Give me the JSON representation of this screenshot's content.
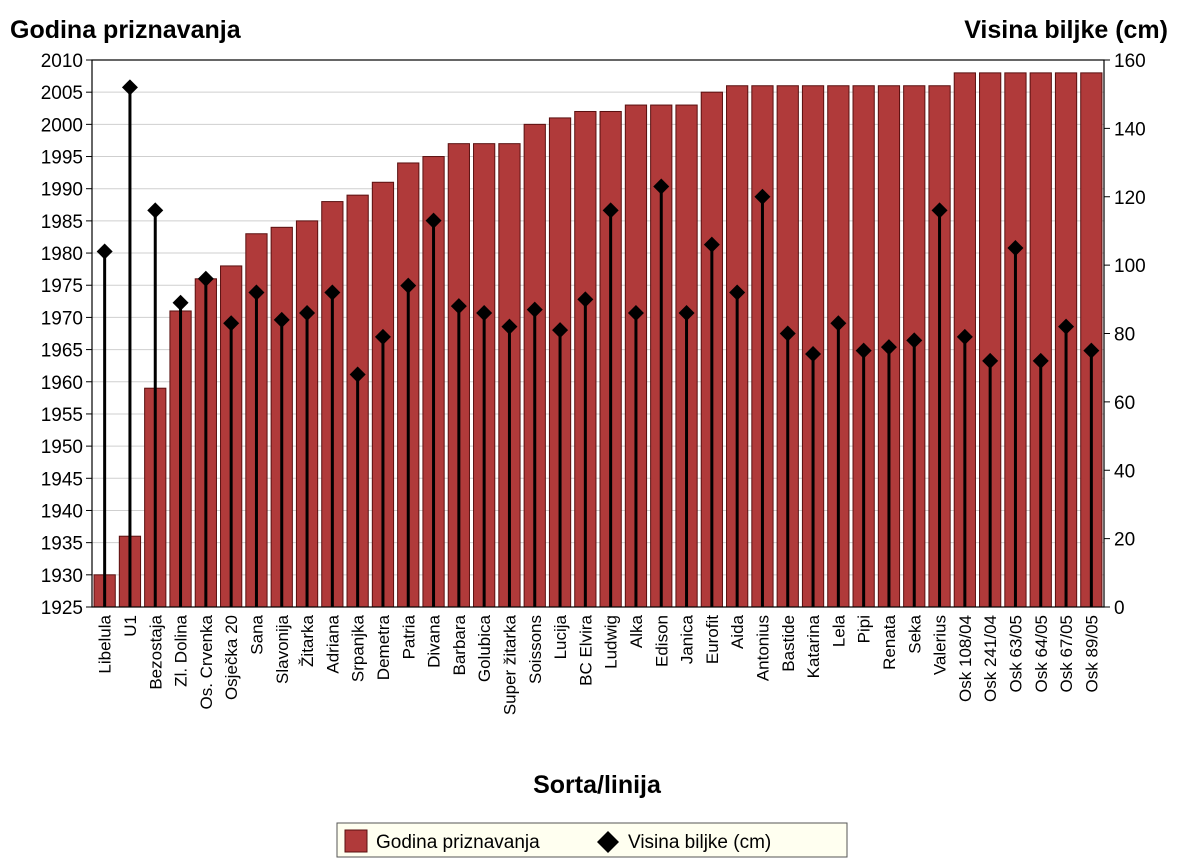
{
  "chart_data": {
    "type": "bar",
    "left_axis_title": "Godina priznavanja",
    "right_axis_title": "Visina biljke (cm)",
    "xlabel": "Sorta/linija",
    "categories": [
      "Libelula",
      "U1",
      "Bezostaja",
      "Zl. Dolina",
      "Os. Crvenka",
      "Osječka 20",
      "Sana",
      "Slavonija",
      "Žitarka",
      "Adriana",
      "Srpanjka",
      "Demetra",
      "Patria",
      "Divana",
      "Barbara",
      "Golubica",
      "Super žitarka",
      "Soissons",
      "Lucija",
      "BC Elvira",
      "Ludwig",
      "Alka",
      "Edison",
      "Janica",
      "Eurofit",
      "Aida",
      "Antonius",
      "Bastide",
      "Katarina",
      "Lela",
      "Pipi",
      "Renata",
      "Seka",
      "Valerius",
      "Osk 108/04",
      "Osk 241/04",
      "Osk 63/05",
      "Osk 64/05",
      "Osk 67/05",
      "Osk 89/05"
    ],
    "series": [
      {
        "name": "Godina priznavanja",
        "type": "bar",
        "axis": "left",
        "values": [
          1930,
          1936,
          1959,
          1971,
          1976,
          1978,
          1983,
          1984,
          1985,
          1988,
          1989,
          1991,
          1994,
          1995,
          1997,
          1997,
          1997,
          2000,
          2001,
          2002,
          2002,
          2003,
          2003,
          2003,
          2005,
          2006,
          2006,
          2006,
          2006,
          2006,
          2006,
          2006,
          2006,
          2006,
          2008,
          2008,
          2008,
          2008,
          2008,
          2008
        ]
      },
      {
        "name": "Visina biljke (cm)",
        "type": "line-marker",
        "axis": "right",
        "values": [
          104,
          152,
          116,
          89,
          96,
          83,
          92,
          84,
          86,
          92,
          68,
          79,
          94,
          113,
          88,
          86,
          82,
          87,
          81,
          90,
          116,
          86,
          123,
          86,
          106,
          92,
          120,
          80,
          74,
          83,
          75,
          76,
          78,
          116,
          79,
          72,
          105,
          72,
          82,
          75
        ]
      }
    ],
    "left_ylim": [
      1925,
      2010
    ],
    "left_yticks": [
      1925,
      1930,
      1935,
      1940,
      1945,
      1950,
      1955,
      1960,
      1965,
      1970,
      1975,
      1980,
      1985,
      1990,
      1995,
      2000,
      2005,
      2010
    ],
    "right_ylim": [
      0,
      160
    ],
    "right_yticks": [
      0,
      20,
      40,
      60,
      80,
      100,
      120,
      140,
      160
    ],
    "grid": true,
    "legend_position": "bottom-center",
    "colors": {
      "bar": "#b03a3a",
      "bar_border": "#5a1010",
      "marker": "#000000",
      "grid": "#cfcfcf",
      "legend_bg": "#fffff0"
    }
  },
  "legend": [
    {
      "label": "Godina priznavanja",
      "symbol": "square",
      "color": "#b03a3a"
    },
    {
      "label": "Visina biljke (cm)",
      "symbol": "diamond",
      "color": "#000000"
    }
  ]
}
